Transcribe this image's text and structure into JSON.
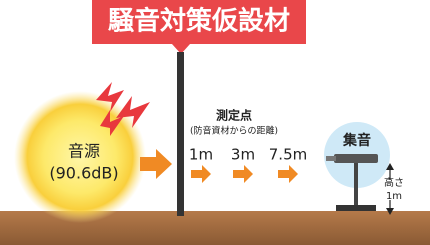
{
  "header": {
    "title": "騒音対策仮設材"
  },
  "source": {
    "label": "音源",
    "level": "(90.6dB)"
  },
  "measurement": {
    "title": "測定点",
    "subtitle": "(防音資材からの距離)",
    "distances": [
      "1m",
      "3m",
      "7.5m"
    ]
  },
  "microphone": {
    "label": "集音",
    "height_label": "高さ",
    "height": "1m"
  }
}
